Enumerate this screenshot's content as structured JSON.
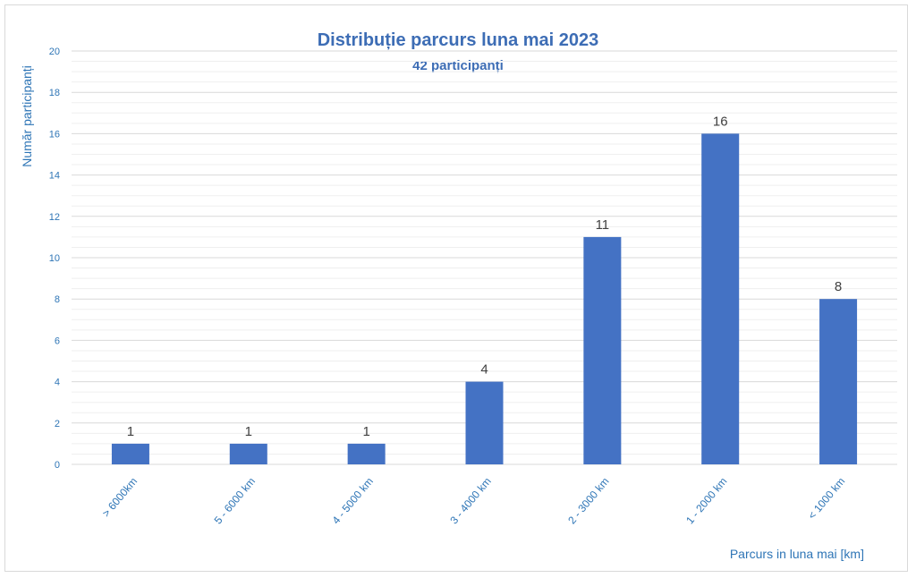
{
  "chart_data": {
    "type": "bar",
    "title": "Distribuție parcurs luna mai 2023",
    "subtitle": "42 participanți",
    "xlabel": "Parcurs in luna mai [km]",
    "ylabel": "Număr participanți",
    "categories": [
      "> 6000km",
      "5 - 6000 km",
      "4 - 5000 km",
      "3 - 4000 km",
      "2 - 3000 km",
      "1 - 2000 km",
      "< 1000 km"
    ],
    "values": [
      1,
      1,
      1,
      4,
      11,
      16,
      8
    ],
    "ylim": [
      0,
      20
    ],
    "yticks": [
      0,
      2,
      4,
      6,
      8,
      10,
      12,
      14,
      16,
      18,
      20
    ],
    "grid": true,
    "legend": "none",
    "colors": {
      "bar": "#4472C4",
      "title": "#3D6DB5",
      "axis_text": "#2E75B6",
      "data_label": "#404040",
      "grid": "#d9d9d9"
    }
  }
}
